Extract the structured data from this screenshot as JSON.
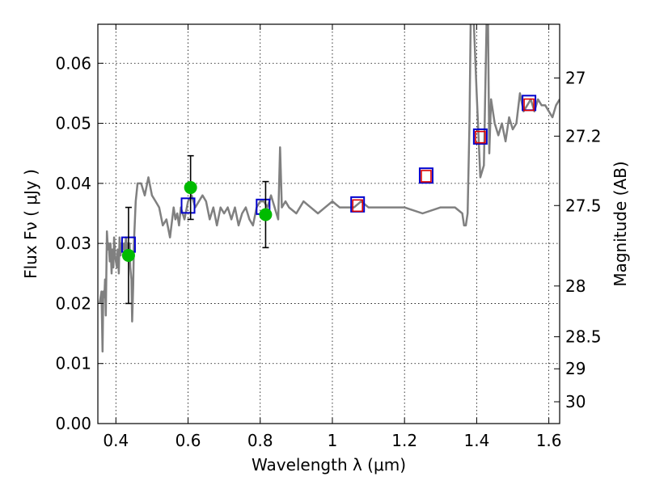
{
  "chart_data": {
    "type": "line",
    "title": "",
    "xlabel": "Wavelength  λ (μm)",
    "ylabel": "Flux  Fν  ( μJy )",
    "ylabel_right": "Magnitude (AB)",
    "xlim": [
      0.35,
      1.63
    ],
    "ylim": [
      0.0,
      0.0665
    ],
    "grid": true,
    "x_ticks": [
      0.4,
      0.6,
      0.8,
      1.0,
      1.2,
      1.4,
      1.6
    ],
    "x_tick_labels": [
      "0.4",
      "0.6",
      "0.8",
      "1",
      "1.2",
      "1.4",
      "1.6"
    ],
    "y_ticks": [
      0.0,
      0.01,
      0.02,
      0.03,
      0.04,
      0.05,
      0.06
    ],
    "y_tick_labels": [
      "0.00",
      "0.01",
      "0.02",
      "0.03",
      "0.04",
      "0.05",
      "0.06"
    ],
    "y2_ticks": [
      27,
      27.2,
      27.5,
      28,
      28.5,
      29,
      30
    ],
    "y2_tick_labels": [
      "27",
      "27.2",
      "27.5",
      "28",
      "28.5",
      "29",
      "30"
    ],
    "series": [
      {
        "name": "model spectrum",
        "type": "line",
        "color": "#808080",
        "x": [
          0.355,
          0.36,
          0.363,
          0.365,
          0.368,
          0.37,
          0.372,
          0.375,
          0.378,
          0.38,
          0.383,
          0.385,
          0.388,
          0.39,
          0.393,
          0.395,
          0.398,
          0.4,
          0.403,
          0.405,
          0.408,
          0.41,
          0.413,
          0.415,
          0.418,
          0.42,
          0.423,
          0.425,
          0.428,
          0.43,
          0.433,
          0.435,
          0.438,
          0.44,
          0.443,
          0.445,
          0.448,
          0.45,
          0.455,
          0.46,
          0.47,
          0.48,
          0.49,
          0.5,
          0.51,
          0.52,
          0.53,
          0.54,
          0.55,
          0.56,
          0.565,
          0.57,
          0.575,
          0.58,
          0.59,
          0.6,
          0.61,
          0.62,
          0.63,
          0.64,
          0.65,
          0.66,
          0.67,
          0.68,
          0.69,
          0.7,
          0.71,
          0.72,
          0.73,
          0.74,
          0.75,
          0.76,
          0.77,
          0.78,
          0.79,
          0.8,
          0.81,
          0.82,
          0.83,
          0.84,
          0.845,
          0.85,
          0.855,
          0.86,
          0.87,
          0.88,
          0.9,
          0.92,
          0.94,
          0.96,
          0.98,
          1.0,
          1.02,
          1.04,
          1.06,
          1.08,
          1.1,
          1.12,
          1.15,
          1.2,
          1.25,
          1.3,
          1.34,
          1.36,
          1.365,
          1.37,
          1.375,
          1.38,
          1.385,
          1.39,
          1.4,
          1.41,
          1.42,
          1.43,
          1.435,
          1.44,
          1.45,
          1.46,
          1.47,
          1.48,
          1.49,
          1.5,
          1.51,
          1.52,
          1.53,
          1.54,
          1.55,
          1.56,
          1.57,
          1.58,
          1.59,
          1.6,
          1.61,
          1.62,
          1.63
        ],
        "y": [
          0.02,
          0.022,
          0.012,
          0.022,
          0.021,
          0.024,
          0.018,
          0.032,
          0.029,
          0.03,
          0.027,
          0.03,
          0.025,
          0.029,
          0.026,
          0.031,
          0.028,
          0.027,
          0.026,
          0.029,
          0.025,
          0.031,
          0.028,
          0.03,
          0.03,
          0.029,
          0.03,
          0.028,
          0.031,
          0.029,
          0.03,
          0.028,
          0.03,
          0.026,
          0.024,
          0.017,
          0.023,
          0.03,
          0.037,
          0.04,
          0.04,
          0.038,
          0.041,
          0.038,
          0.037,
          0.036,
          0.033,
          0.034,
          0.031,
          0.036,
          0.034,
          0.035,
          0.033,
          0.036,
          0.034,
          0.037,
          0.038,
          0.036,
          0.037,
          0.038,
          0.037,
          0.034,
          0.036,
          0.033,
          0.036,
          0.035,
          0.036,
          0.034,
          0.036,
          0.033,
          0.035,
          0.036,
          0.034,
          0.033,
          0.036,
          0.037,
          0.037,
          0.036,
          0.038,
          0.036,
          0.035,
          0.034,
          0.046,
          0.036,
          0.037,
          0.036,
          0.035,
          0.037,
          0.036,
          0.035,
          0.036,
          0.037,
          0.036,
          0.036,
          0.036,
          0.037,
          0.036,
          0.036,
          0.036,
          0.036,
          0.035,
          0.036,
          0.036,
          0.035,
          0.033,
          0.033,
          0.035,
          0.05,
          0.075,
          0.07,
          0.055,
          0.041,
          0.043,
          0.075,
          0.045,
          0.054,
          0.05,
          0.048,
          0.05,
          0.047,
          0.051,
          0.049,
          0.05,
          0.055,
          0.052,
          0.053,
          0.054,
          0.052,
          0.054,
          0.053,
          0.053,
          0.052,
          0.051,
          0.053,
          0.054
        ]
      },
      {
        "name": "photometry (green)",
        "type": "scatter",
        "color": "#00bb00",
        "x": [
          0.435,
          0.607,
          0.815
        ],
        "y": [
          0.028,
          0.0393,
          0.0348
        ],
        "yerr": [
          0.008,
          0.0053,
          0.0055
        ]
      },
      {
        "name": "model photometry (blue squares)",
        "type": "scatter",
        "color": "#0000cc",
        "x": [
          0.435,
          0.6,
          0.808,
          1.07,
          1.26,
          1.41,
          1.545
        ],
        "y": [
          0.0298,
          0.0363,
          0.0361,
          0.0365,
          0.0413,
          0.0478,
          0.0534
        ]
      },
      {
        "name": "model photometry (red squares)",
        "type": "scatter",
        "color": "#dd0000",
        "x": [
          1.07,
          1.26,
          1.41,
          1.545
        ],
        "y": [
          0.0363,
          0.0412,
          0.0477,
          0.0531
        ]
      }
    ]
  }
}
